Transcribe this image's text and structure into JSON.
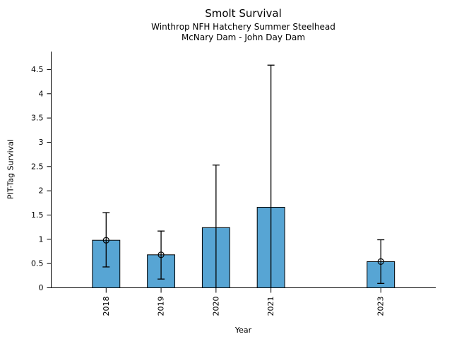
{
  "figure": {
    "background": "#ffffff"
  },
  "chart_data": {
    "type": "bar",
    "title": "Smolt Survival",
    "subtitle": [
      "Winthrop NFH Hatchery Summer Steelhead",
      "McNary Dam - John Day Dam"
    ],
    "xlabel": "Year",
    "ylabel": "PIT-Tag Survival",
    "categories": [
      "2018",
      "2019",
      "2020",
      "2021",
      "2023"
    ],
    "x_numeric": [
      2018,
      2019,
      2020,
      2021,
      2023
    ],
    "values": [
      0.98,
      0.68,
      1.24,
      1.66,
      0.54
    ],
    "error_low": [
      0.43,
      0.18,
      0.0,
      0.0,
      0.09
    ],
    "error_high": [
      1.55,
      1.17,
      2.53,
      4.59,
      0.99
    ],
    "point_markers": [
      0.98,
      0.68,
      null,
      null,
      0.54
    ],
    "xlim": [
      2017,
      2024
    ],
    "ylim": [
      0,
      4.87
    ],
    "yticks": [
      0,
      0.5,
      1,
      1.5,
      2,
      2.5,
      3,
      3.5,
      4,
      4.5
    ],
    "bar_color": "#57a5d4",
    "bar_edge_color": "#000000",
    "error_bar_color": "#000000",
    "axis_color": "#000000",
    "bar_width_years": 0.5,
    "grid": false,
    "legend": null
  }
}
